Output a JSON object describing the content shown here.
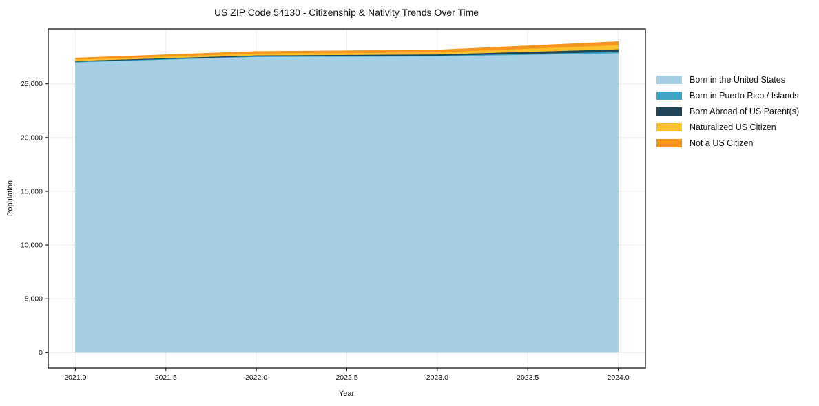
{
  "figure": {
    "background": "#ffffff",
    "spine_color": "#000000",
    "grid_color": "#efefef"
  },
  "chart_data": {
    "type": "area",
    "stacked": true,
    "title": "US ZIP Code 54130 - Citizenship & Nativity Trends Over Time",
    "xlabel": "Year",
    "ylabel": "Population",
    "x": [
      2021,
      2022,
      2023,
      2024
    ],
    "series": [
      {
        "name": "Born in the United States",
        "color": "#a4cfe4",
        "values": [
          27000,
          27500,
          27550,
          27850
        ]
      },
      {
        "name": "Born in Puerto Rico / Islands",
        "color": "#3ba3c4",
        "values": [
          60,
          60,
          70,
          120
        ]
      },
      {
        "name": "Born Abroad of US Parent(s)",
        "color": "#204458",
        "values": [
          70,
          80,
          120,
          250
        ]
      },
      {
        "name": "Naturalized US Citizen",
        "color": "#fcc02d",
        "values": [
          130,
          180,
          200,
          380
        ]
      },
      {
        "name": "Not a US Citizen",
        "color": "#f5941f",
        "values": [
          140,
          190,
          210,
          330
        ]
      }
    ],
    "totals": [
      27400,
      28010,
      28150,
      28930
    ],
    "xlim": [
      2020.85,
      2024.15
    ],
    "ylim": [
      -1450,
      30100
    ],
    "x_ticks": [
      2021.0,
      2021.5,
      2022.0,
      2022.5,
      2023.0,
      2023.5,
      2024.0
    ],
    "x_tick_labels": [
      "2021.0",
      "2021.5",
      "2022.0",
      "2022.5",
      "2023.0",
      "2023.5",
      "2024.0"
    ],
    "y_ticks": [
      0,
      5000,
      10000,
      15000,
      20000,
      25000
    ],
    "y_tick_labels": [
      "0",
      "5,000",
      "10,000",
      "15,000",
      "20,000",
      "25,000"
    ],
    "grid": true,
    "legend_position": "right-outside"
  }
}
